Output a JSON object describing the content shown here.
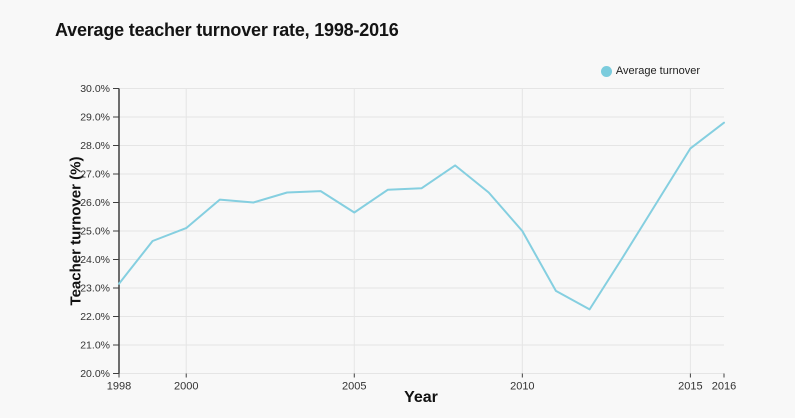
{
  "title": "Average teacher turnover rate, 1998-2016",
  "legend": {
    "label": "Average turnover"
  },
  "colors": {
    "background": "#f8f8f8",
    "line": "#85cfe0",
    "legend_dot": "#7bccdd",
    "grid": "#e5e5e5",
    "axis": "#3f3f3f",
    "tick_text": "#333333",
    "title_text": "#141414"
  },
  "chart_data": {
    "type": "line",
    "title": "Average teacher turnover rate, 1998-2016",
    "xlabel": "Year",
    "ylabel": "Teacher turnover (%)",
    "x": [
      1998,
      1999,
      2000,
      2001,
      2002,
      2003,
      2004,
      2005,
      2006,
      2007,
      2008,
      2009,
      2010,
      2011,
      2012,
      2013,
      2014,
      2015,
      2016
    ],
    "series": [
      {
        "name": "Average turnover",
        "values": [
          23.15,
          24.65,
          25.1,
          26.1,
          26.0,
          26.35,
          26.4,
          25.65,
          26.45,
          26.5,
          27.3,
          26.35,
          25.0,
          22.9,
          22.25,
          24.1,
          26.0,
          27.9,
          28.8
        ]
      }
    ],
    "ylim": [
      20,
      30
    ],
    "xlim": [
      1998,
      2016
    ],
    "ytick_values": [
      30,
      29,
      28,
      27,
      26,
      25,
      24,
      23,
      22,
      21,
      20
    ],
    "ytick_labels": [
      "30.0%",
      "29.0%",
      "28.0%",
      "27.0%",
      "26.0%",
      "25.0%",
      "24.0%",
      "23.0%",
      "22.0%",
      "21.0%",
      "20.0%"
    ],
    "xtick_values": [
      1998,
      2000,
      2005,
      2010,
      2015,
      2016
    ],
    "xtick_labels": [
      "1998",
      "2000",
      "2005",
      "2010",
      "2015",
      "2016"
    ],
    "grid_years": [
      2000,
      2005,
      2010,
      2015
    ],
    "grid": true,
    "legend_position": "top-right"
  }
}
